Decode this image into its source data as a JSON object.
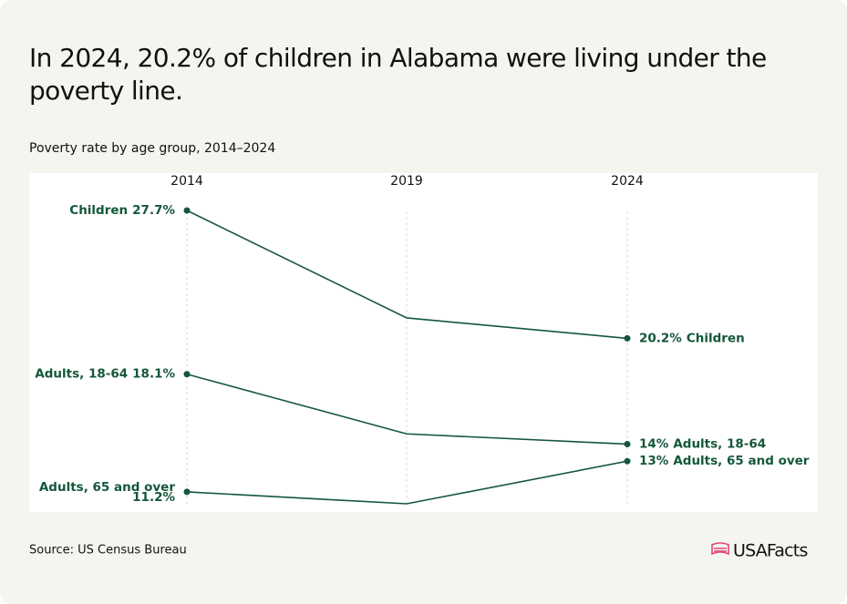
{
  "chart_data": {
    "type": "slope",
    "title": "In 2024, 20.2% of children in Alabama were living under the poverty line.",
    "subtitle": "Poverty rate by age group, 2014–2024",
    "source": "Source: US Census Bureau",
    "logo": "USAFacts",
    "color": "#14573a",
    "categories": [
      "2014",
      "2019",
      "2024"
    ],
    "series": [
      {
        "name": "Children",
        "values": [
          27.7,
          21.4,
          20.2
        ],
        "value_labels": [
          "27.7%",
          null,
          "20.2%"
        ]
      },
      {
        "name": "Adults, 18-64",
        "values": [
          18.1,
          14.6,
          14
        ],
        "value_labels": [
          "18.1%",
          null,
          "14%"
        ]
      },
      {
        "name": "Adults, 65 and over",
        "values": [
          11.2,
          10.5,
          13
        ],
        "value_labels": [
          "11.2%",
          null,
          "13%"
        ]
      }
    ]
  }
}
